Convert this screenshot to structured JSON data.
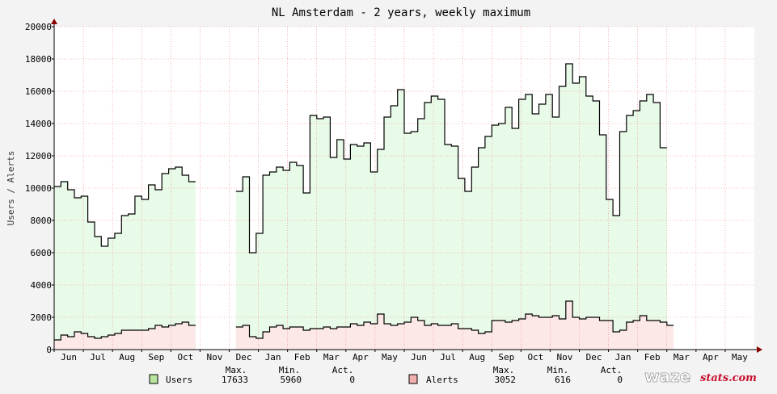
{
  "chart_data": {
    "type": "area",
    "title": "NL Amsterdam - 2 years, weekly maximum",
    "ylabel": "Users / Alerts",
    "ylim": [
      0,
      20000
    ],
    "yticks": [
      0,
      2000,
      4000,
      6000,
      8000,
      10000,
      12000,
      14000,
      16000,
      18000,
      20000
    ],
    "xticks": [
      "Jun",
      "Jul",
      "Aug",
      "Sep",
      "Oct",
      "Nov",
      "Dec",
      "Jan",
      "Feb",
      "Mar",
      "Apr",
      "May",
      "Jun",
      "Jul",
      "Aug",
      "Sep",
      "Oct",
      "Nov",
      "Dec",
      "Jan",
      "Feb",
      "Mar",
      "Apr",
      "May"
    ],
    "x_range_weeks": [
      0,
      104
    ],
    "grid": true,
    "series": [
      {
        "name": "Users",
        "color": "#000000",
        "fill": "#e8fbe8",
        "legend_swatch": "#b8e6a0",
        "values": [
          10100,
          10400,
          9900,
          9400,
          9500,
          7900,
          7000,
          6400,
          6900,
          7200,
          8300,
          8400,
          9500,
          9300,
          10200,
          9900,
          10900,
          11200,
          11300,
          10800,
          10400,
          null,
          null,
          null,
          null,
          null,
          null,
          9800,
          10700,
          6000,
          7200,
          10800,
          11000,
          11300,
          11100,
          11600,
          11400,
          9700,
          14500,
          14300,
          14400,
          11900,
          13000,
          11800,
          12700,
          12600,
          12800,
          11000,
          12400,
          14400,
          15100,
          16100,
          13400,
          13500,
          14300,
          15300,
          15700,
          15500,
          12700,
          12600,
          10600,
          9800,
          11300,
          12500,
          13200,
          13900,
          14000,
          15000,
          13700,
          15500,
          15800,
          14600,
          15200,
          15800,
          14400,
          16300,
          17700,
          16500,
          16900,
          15700,
          15400,
          13300,
          9300,
          8300,
          13500,
          14500,
          14800,
          15400,
          15800,
          15300,
          12500
        ],
        "stats": {
          "Max.": "17633",
          "Min.": "5960",
          "Act.": "0"
        }
      },
      {
        "name": "Alerts",
        "color": "#000000",
        "fill": "#fde8e8",
        "legend_swatch": "#f0b0b0",
        "values": [
          600,
          900,
          800,
          1100,
          1000,
          800,
          700,
          800,
          900,
          1000,
          1200,
          1200,
          1200,
          1200,
          1300,
          1500,
          1400,
          1500,
          1600,
          1700,
          1500,
          null,
          null,
          null,
          null,
          null,
          null,
          1400,
          1500,
          800,
          700,
          1100,
          1400,
          1500,
          1300,
          1400,
          1400,
          1200,
          1300,
          1300,
          1400,
          1300,
          1400,
          1400,
          1600,
          1500,
          1700,
          1600,
          2200,
          1600,
          1500,
          1600,
          1700,
          2000,
          1800,
          1500,
          1600,
          1500,
          1500,
          1600,
          1300,
          1300,
          1200,
          1000,
          1100,
          1800,
          1800,
          1700,
          1800,
          1900,
          2200,
          2100,
          2000,
          2000,
          2100,
          1900,
          3000,
          2000,
          1900,
          2000,
          2000,
          1800,
          1800,
          1100,
          1200,
          1700,
          1800,
          2100,
          1800,
          1800,
          1700,
          1500
        ],
        "stats": {
          "Max.": "3052",
          "Min.": "616",
          "Act.": "0"
        }
      }
    ]
  },
  "legend": {
    "header": {
      "max": "Max.",
      "min": "Min.",
      "act": "Act."
    },
    "users": {
      "label": "Users",
      "max": "17633",
      "min": "5960",
      "act": "0"
    },
    "alerts": {
      "label": "Alerts",
      "max": "3052",
      "min": "616",
      "act": "0"
    }
  },
  "logo": {
    "waze": "waze",
    "stats": "stats.com"
  }
}
